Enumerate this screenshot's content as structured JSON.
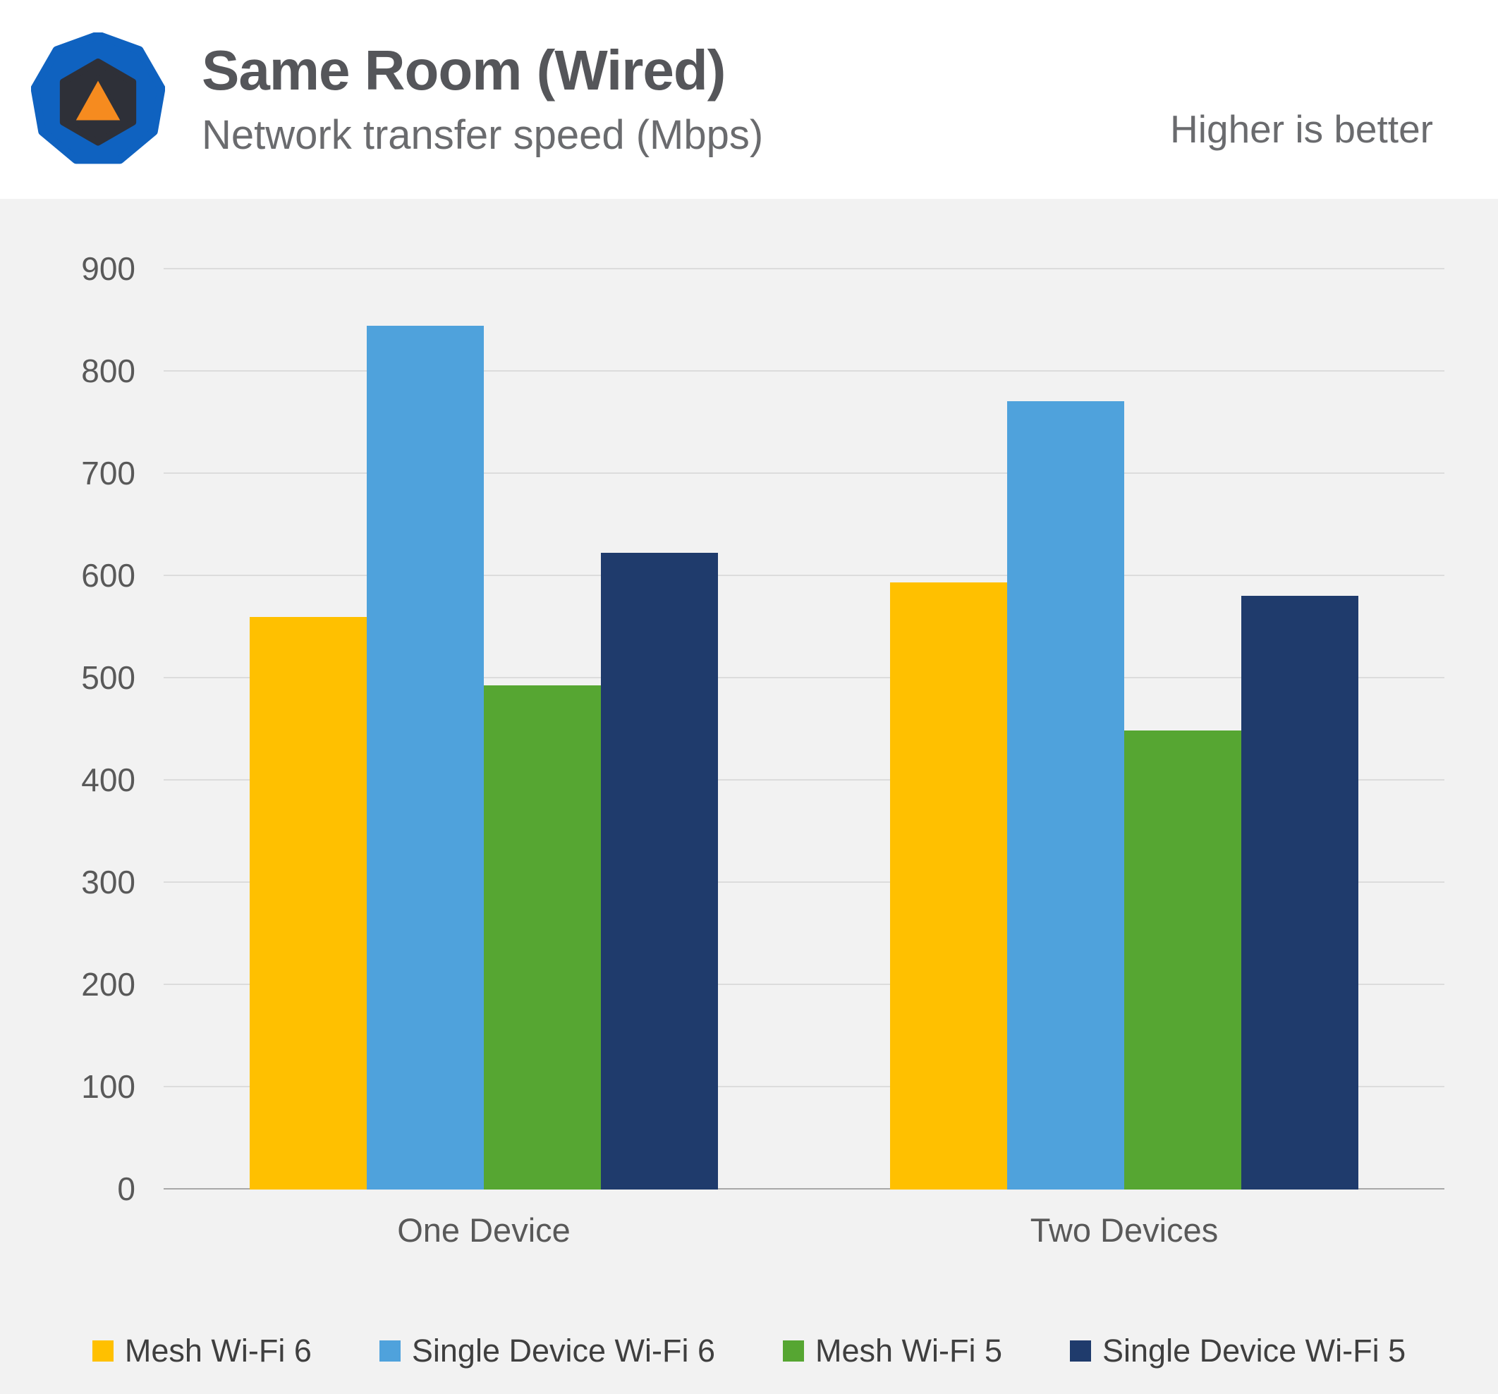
{
  "header": {
    "title": "Same Room (Wired)",
    "subtitle": "Network transfer speed (Mbps)",
    "note": "Higher is better"
  },
  "logo": {
    "name": "techspot-logo",
    "outer_color": "#0f62c0",
    "inner_color": "#2e3038",
    "triangle_color": "#f68b1f"
  },
  "chart_data": {
    "type": "bar",
    "title": "Same Room (Wired)",
    "subtitle": "Network transfer speed (Mbps)",
    "xlabel": "",
    "ylabel": "",
    "categories": [
      "One Device",
      "Two Devices"
    ],
    "series": [
      {
        "name": "Mesh Wi-Fi 6",
        "color": "#ffc000",
        "values": [
          560,
          594
        ]
      },
      {
        "name": "Single Device Wi-Fi 6",
        "color": "#4fa2dc",
        "values": [
          845,
          771
        ]
      },
      {
        "name": "Mesh Wi-Fi 5",
        "color": "#56a632",
        "values": [
          493,
          449
        ]
      },
      {
        "name": "Single Device Wi-Fi 5",
        "color": "#1f3b6c",
        "values": [
          623,
          581
        ]
      }
    ],
    "ylim": [
      0,
      900
    ],
    "ytick_interval": 100,
    "grid": true,
    "legend_position": "bottom"
  }
}
